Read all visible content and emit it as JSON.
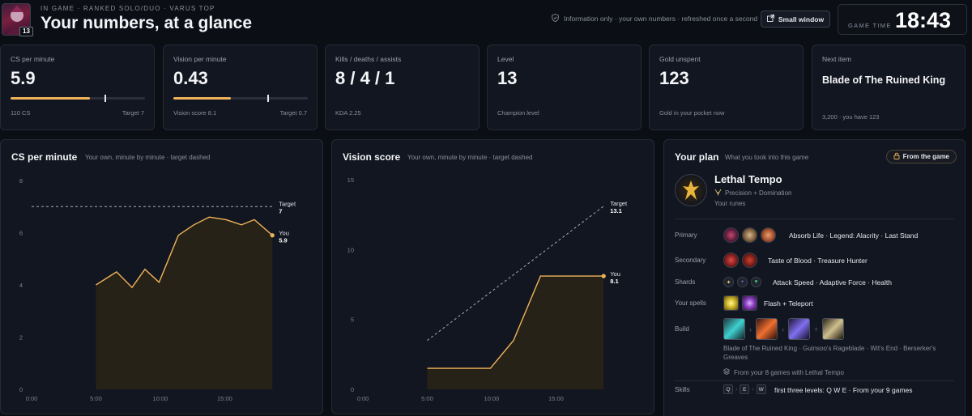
{
  "header": {
    "level": "13",
    "eyebrow": "IN GAME · RANKED SOLO/DUO · VARUS TOP",
    "title": "Your numbers, at a glance",
    "info": "Information only · your own numbers · refreshed once a second",
    "small_window_label": "Small window",
    "game_time_label": "GAME TIME",
    "game_time": "18:43"
  },
  "stats": [
    {
      "label": "CS per minute",
      "value": "5.9",
      "foot_left": "110 CS",
      "foot_right": "Target 7",
      "progress": 0.59,
      "target_mark": 0.7
    },
    {
      "label": "Vision per minute",
      "value": "0.43",
      "foot_left": "Vision score 8.1",
      "foot_right": "Target 0.7",
      "progress": 0.43,
      "target_mark": 0.7
    },
    {
      "label": "Kills / deaths / assists",
      "value": "8 / 4 / 1",
      "foot_left": "KDA 2.25"
    },
    {
      "label": "Level",
      "value": "13",
      "foot_left": "Champion level"
    },
    {
      "label": "Gold unspent",
      "value": "123",
      "foot_left": "Gold in your pocket now"
    },
    {
      "label": "Next item",
      "value": "Blade of The Ruined King",
      "foot_left": "3,200 · you have 123"
    }
  ],
  "chart_data": [
    {
      "type": "line",
      "title": "CS per minute",
      "subtitle": "Your own, minute by minute · target dashed",
      "ylim": [
        0,
        8
      ],
      "yticks": [
        0,
        2,
        4,
        6,
        8
      ],
      "xlim": [
        0,
        19
      ],
      "xticks": [
        "0:00",
        "5:00",
        "10:00",
        "15:00"
      ],
      "xtick_values": [
        0,
        5,
        10,
        15
      ],
      "series": [
        {
          "name": "You",
          "x": [
            5,
            6.6,
            7.8,
            8.8,
            9.9,
            11.4,
            12.6,
            13.8,
            15.1,
            16.3,
            17.3,
            18.7
          ],
          "y": [
            4.0,
            4.5,
            3.9,
            4.6,
            4.1,
            5.9,
            6.3,
            6.6,
            6.5,
            6.3,
            6.5,
            5.9
          ],
          "label_value": "5.9"
        },
        {
          "name": "Target",
          "x": [
            0,
            18.7
          ],
          "y": [
            7,
            7
          ],
          "dashed": true,
          "label_value": "7"
        }
      ]
    },
    {
      "type": "line",
      "title": "Vision score",
      "subtitle": "Your own, minute by minute · target dashed",
      "ylim": [
        0,
        15
      ],
      "yticks": [
        0,
        5,
        10,
        15
      ],
      "xlim": [
        0,
        19
      ],
      "xticks": [
        "0:00",
        "5:00",
        "10:00",
        "15:00"
      ],
      "xtick_values": [
        0,
        5,
        10,
        15
      ],
      "series": [
        {
          "name": "You",
          "x": [
            5,
            9.9,
            11.7,
            13.8,
            18.7
          ],
          "y": [
            1.5,
            1.5,
            3.5,
            8.1,
            8.1
          ],
          "label_value": "8.1"
        },
        {
          "name": "Target",
          "x": [
            5,
            18.7
          ],
          "y": [
            3.5,
            13.1
          ],
          "dashed": true,
          "label_value": "13.1"
        }
      ]
    }
  ],
  "plan": {
    "title": "Your plan",
    "subtitle": "What you took into this game",
    "from_game_label": "From the game",
    "keystone": "Lethal Tempo",
    "trees": "Precision + Domination",
    "your_runes": "Your runes",
    "rows": {
      "primary_label": "Primary",
      "primary_text": "Absorb Life · Legend: Alacrity · Last Stand",
      "secondary_label": "Secondary",
      "secondary_text": "Taste of Blood · Treasure Hunter",
      "shards_label": "Shards",
      "shards_text": "Attack Speed · Adaptive Force · Health",
      "spells_label": "Your spells",
      "spells_text": "Flash + Teleport",
      "build_label": "Build",
      "build_text": "Blade of The Ruined King · Guinsoo's Rageblade · Wit's End · Berserker's Greaves",
      "build_source": "From your 8 games with Lethal Tempo",
      "skills_label": "Skills",
      "skills_keys": [
        "Q",
        "E",
        "W"
      ],
      "skills_text": "first three levels: Q W E · From your 9 games"
    }
  },
  "colors": {
    "accent": "#f0b35a",
    "background": "#0b0e14",
    "card": "#121620"
  }
}
